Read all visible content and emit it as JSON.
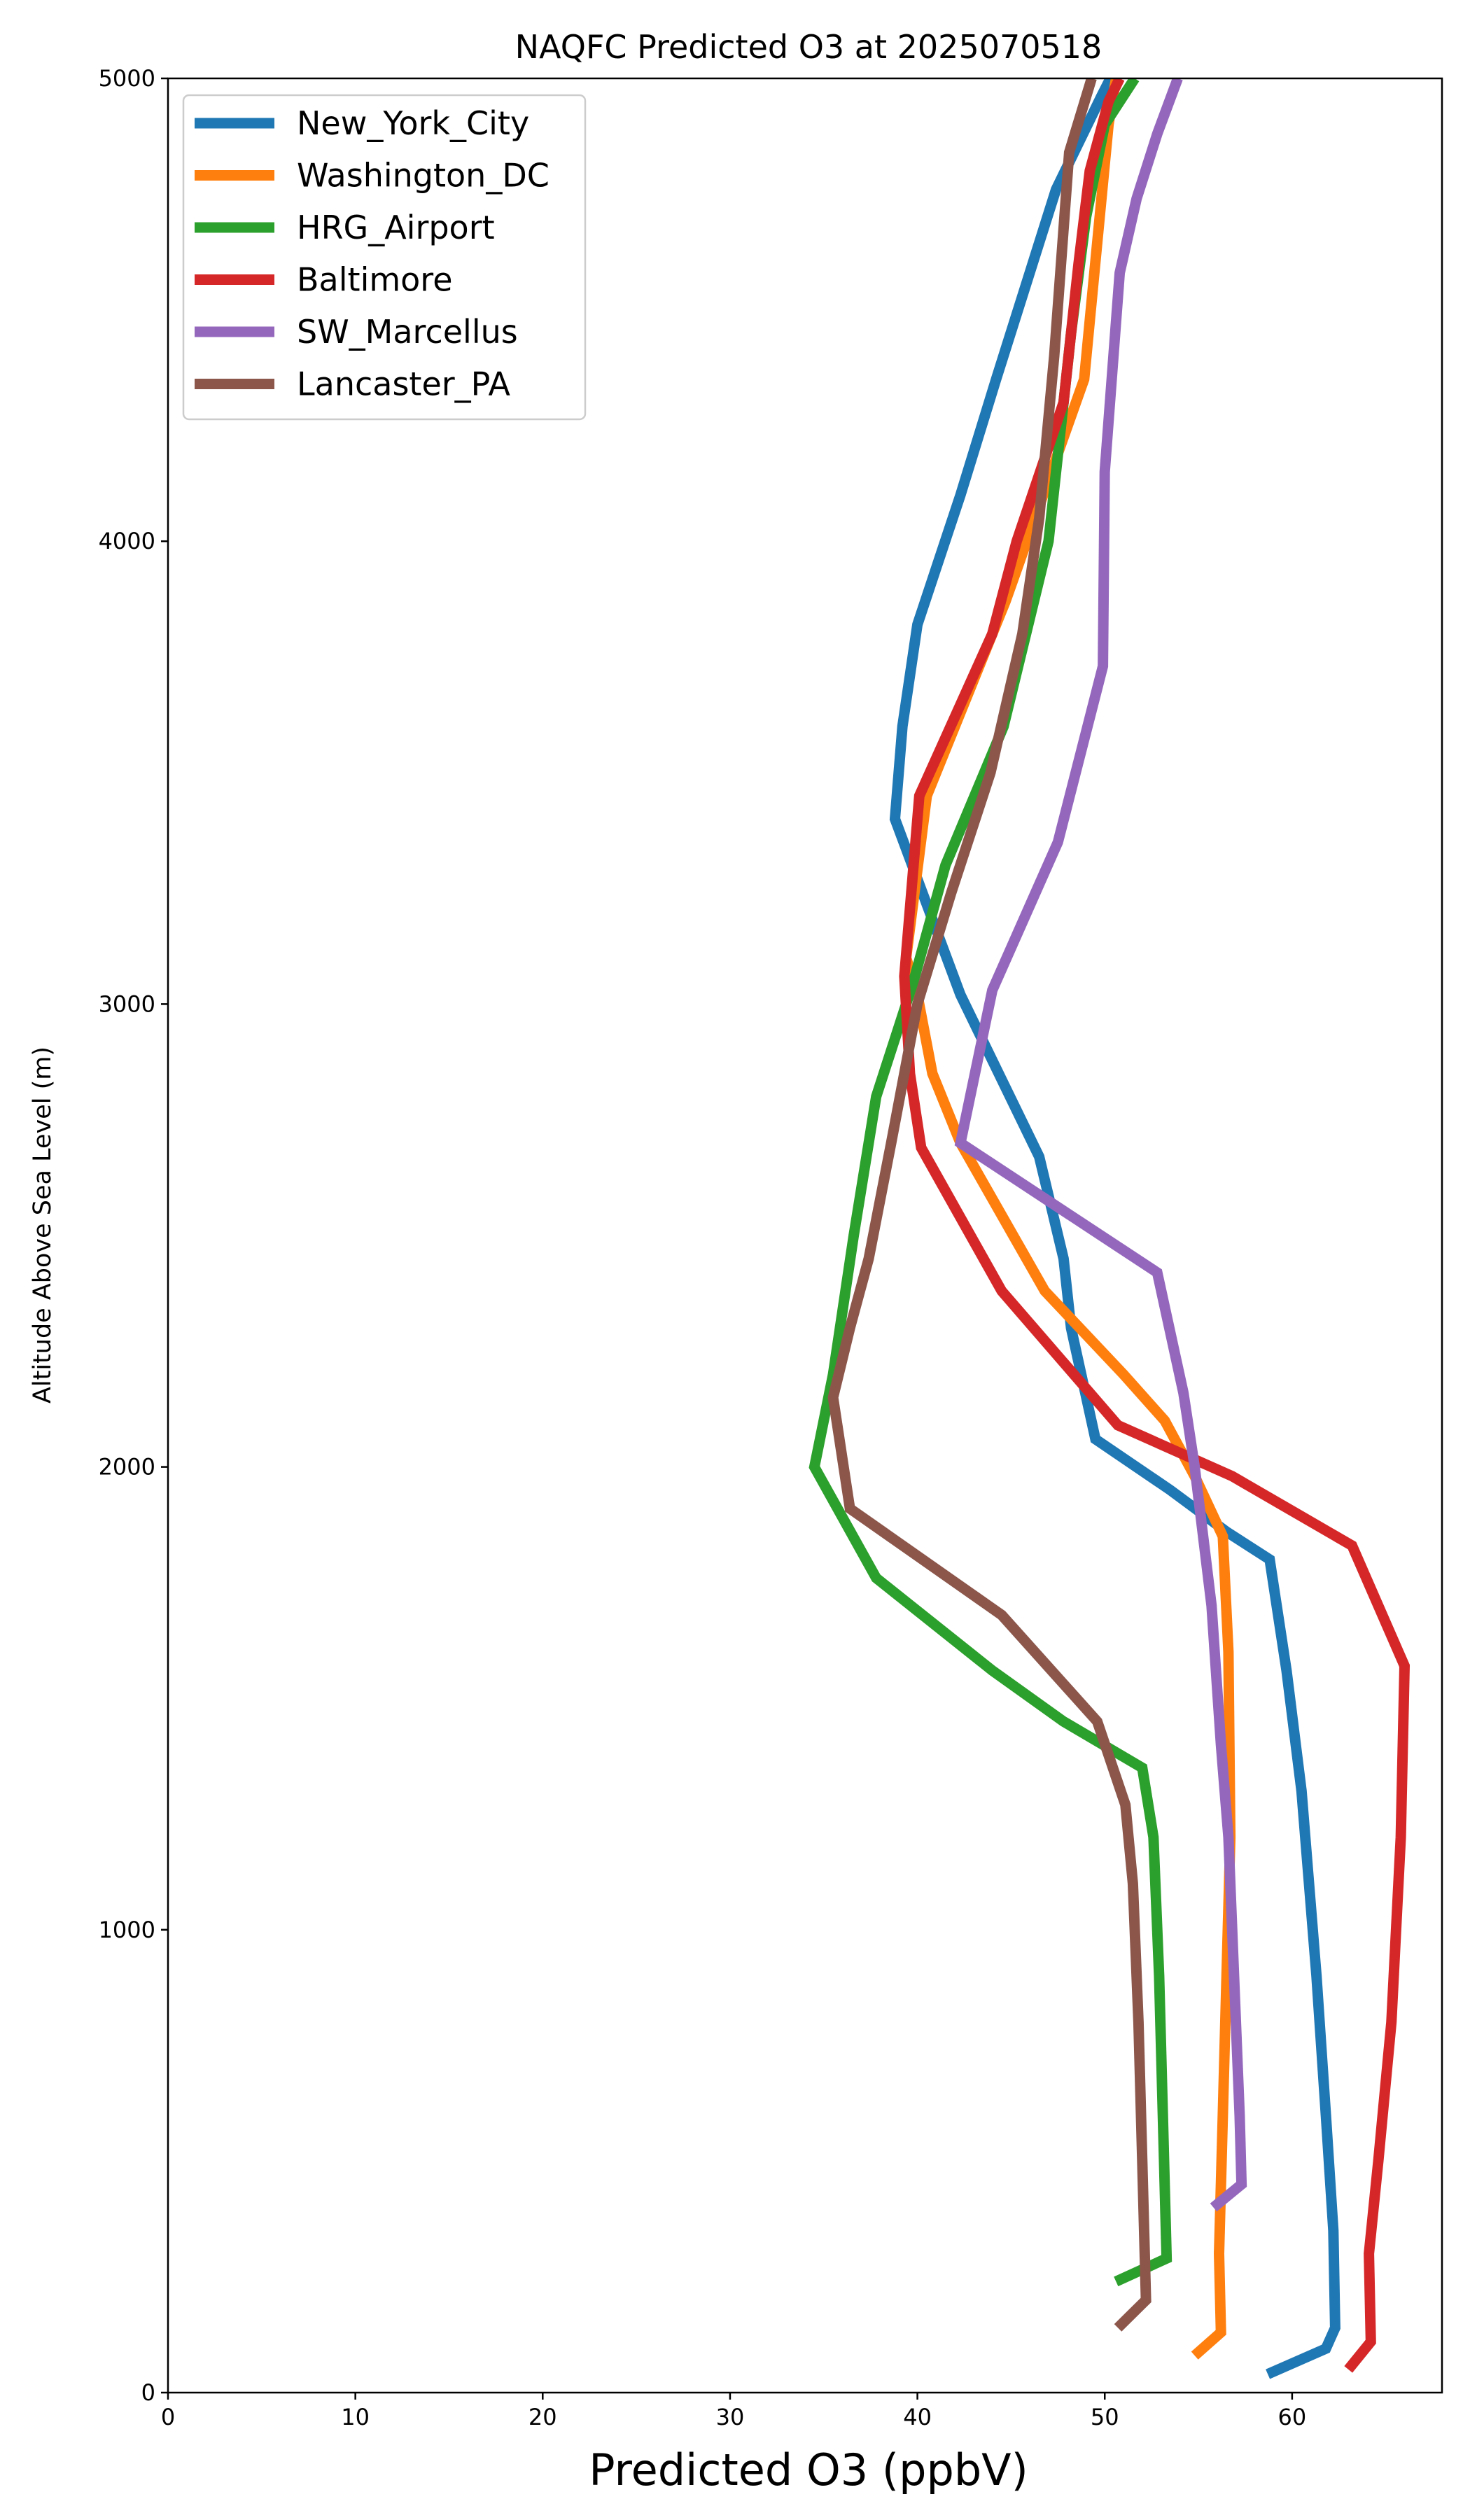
{
  "chart_data": {
    "type": "line",
    "title": "NAQFC Predicted O3 at 2025070518",
    "xlabel": "Predicted O3 (ppbV)",
    "ylabel": "Altitude Above Sea Level (m)",
    "xlim": [
      0,
      68
    ],
    "ylim": [
      0,
      5000
    ],
    "xticks": [
      0,
      10,
      20,
      30,
      40,
      50,
      60
    ],
    "yticks": [
      0,
      1000,
      2000,
      3000,
      4000,
      5000
    ],
    "grid": false,
    "legend_position": "upper-left",
    "series": [
      {
        "name": "New_York_City",
        "color": "#1f77b4",
        "points": [
          [
            58.7,
            40
          ],
          [
            61.8,
            95
          ],
          [
            62.3,
            140
          ],
          [
            62.2,
            350
          ],
          [
            61.8,
            600
          ],
          [
            61.3,
            900
          ],
          [
            60.5,
            1300
          ],
          [
            59.7,
            1560
          ],
          [
            58.8,
            1800
          ],
          [
            56.5,
            1860
          ],
          [
            53.5,
            1950
          ],
          [
            49.5,
            2060
          ],
          [
            48.2,
            2300
          ],
          [
            47.8,
            2450
          ],
          [
            46.5,
            2670
          ],
          [
            42.3,
            3020
          ],
          [
            38.8,
            3400
          ],
          [
            39.2,
            3600
          ],
          [
            40.0,
            3820
          ],
          [
            42.3,
            4100
          ],
          [
            44.2,
            4350
          ],
          [
            47.4,
            4760
          ],
          [
            49.8,
            4960
          ],
          [
            50.3,
            5000
          ]
        ]
      },
      {
        "name": "Washington_DC",
        "color": "#ff7f0e",
        "points": [
          [
            54.8,
            80
          ],
          [
            56.2,
            130
          ],
          [
            56.1,
            300
          ],
          [
            56.3,
            600
          ],
          [
            56.5,
            900
          ],
          [
            56.7,
            1200
          ],
          [
            56.6,
            1600
          ],
          [
            56.3,
            1850
          ],
          [
            54.8,
            1980
          ],
          [
            53.2,
            2100
          ],
          [
            51.0,
            2200
          ],
          [
            46.8,
            2380
          ],
          [
            42.3,
            2700
          ],
          [
            40.8,
            2850
          ],
          [
            40.0,
            3020
          ],
          [
            39.4,
            3100
          ],
          [
            40.5,
            3450
          ],
          [
            44.7,
            3870
          ],
          [
            48.9,
            4350
          ],
          [
            50.2,
            4900
          ],
          [
            50.6,
            5000
          ]
        ]
      },
      {
        "name": "HRG_Airport",
        "color": "#2ca02c",
        "points": [
          [
            50.6,
            240
          ],
          [
            53.3,
            290
          ],
          [
            53.1,
            600
          ],
          [
            52.9,
            900
          ],
          [
            52.6,
            1200
          ],
          [
            52.0,
            1350
          ],
          [
            47.8,
            1450
          ],
          [
            44.0,
            1560
          ],
          [
            37.8,
            1760
          ],
          [
            34.5,
            2000
          ],
          [
            35.5,
            2200
          ],
          [
            36.6,
            2500
          ],
          [
            37.8,
            2800
          ],
          [
            39.8,
            3050
          ],
          [
            41.5,
            3300
          ],
          [
            44.6,
            3600
          ],
          [
            47.0,
            4000
          ],
          [
            48.2,
            4450
          ],
          [
            49.0,
            4700
          ],
          [
            50.0,
            4900
          ],
          [
            51.6,
            5000
          ]
        ]
      },
      {
        "name": "Baltimore",
        "color": "#d62728",
        "points": [
          [
            63.0,
            50
          ],
          [
            64.2,
            110
          ],
          [
            64.1,
            300
          ],
          [
            64.6,
            500
          ],
          [
            65.3,
            800
          ],
          [
            65.8,
            1200
          ],
          [
            66.0,
            1570
          ],
          [
            63.2,
            1830
          ],
          [
            56.8,
            1980
          ],
          [
            50.7,
            2090
          ],
          [
            44.5,
            2380
          ],
          [
            40.2,
            2690
          ],
          [
            39.6,
            2850
          ],
          [
            39.3,
            3060
          ],
          [
            40.1,
            3450
          ],
          [
            44.0,
            3800
          ],
          [
            45.3,
            4000
          ],
          [
            47.8,
            4300
          ],
          [
            48.6,
            4600
          ],
          [
            49.2,
            4800
          ],
          [
            50.2,
            4950
          ],
          [
            50.8,
            5000
          ]
        ]
      },
      {
        "name": "SW_Marcellus",
        "color": "#9467bd",
        "points": [
          [
            55.8,
            400
          ],
          [
            57.3,
            450
          ],
          [
            57.2,
            600
          ],
          [
            56.9,
            900
          ],
          [
            56.6,
            1200
          ],
          [
            56.2,
            1400
          ],
          [
            55.7,
            1700
          ],
          [
            54.8,
            2000
          ],
          [
            54.2,
            2160
          ],
          [
            52.8,
            2420
          ],
          [
            42.3,
            2700
          ],
          [
            44.0,
            3030
          ],
          [
            47.5,
            3350
          ],
          [
            49.9,
            3730
          ],
          [
            50.0,
            4150
          ],
          [
            50.8,
            4580
          ],
          [
            51.7,
            4740
          ],
          [
            52.8,
            4880
          ],
          [
            53.9,
            5000
          ]
        ]
      },
      {
        "name": "Lancaster_PA",
        "color": "#8c564b",
        "points": [
          [
            50.7,
            140
          ],
          [
            52.2,
            200
          ],
          [
            52.0,
            500
          ],
          [
            51.8,
            800
          ],
          [
            51.5,
            1100
          ],
          [
            51.1,
            1270
          ],
          [
            49.6,
            1450
          ],
          [
            44.5,
            1680
          ],
          [
            36.4,
            1910
          ],
          [
            35.5,
            2150
          ],
          [
            36.4,
            2300
          ],
          [
            37.4,
            2450
          ],
          [
            38.6,
            2700
          ],
          [
            40.0,
            3000
          ],
          [
            41.8,
            3240
          ],
          [
            43.9,
            3500
          ],
          [
            45.6,
            3800
          ],
          [
            46.5,
            4050
          ],
          [
            47.3,
            4400
          ],
          [
            48.1,
            4840
          ],
          [
            49.3,
            5000
          ]
        ]
      }
    ]
  }
}
